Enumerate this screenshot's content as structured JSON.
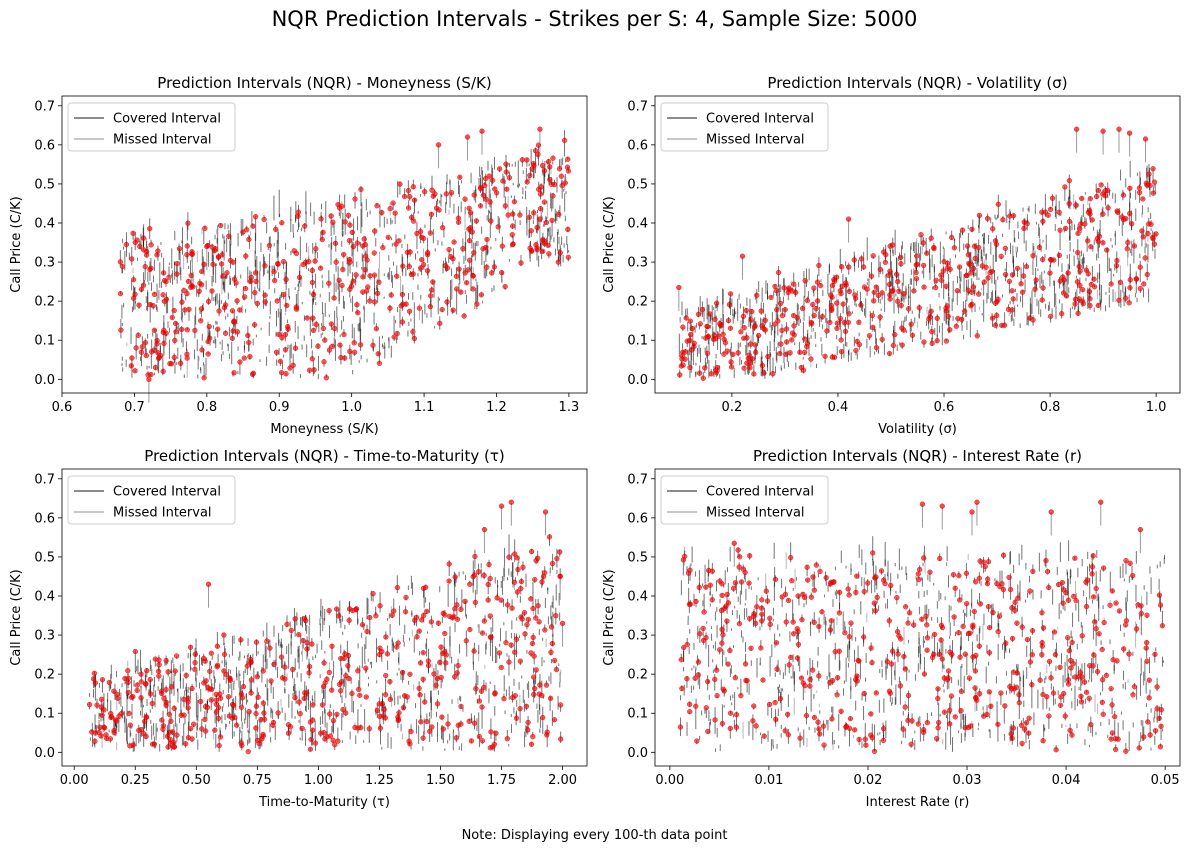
{
  "figure": {
    "suptitle": "NQR Prediction Intervals - Strikes per S: 4, Sample Size: 5000",
    "note": "Note: Displaying every 100-th data point",
    "legend": {
      "covered": "Covered Interval",
      "missed": "Missed Interval"
    },
    "colors": {
      "covered": "#000000",
      "missed": "#999999",
      "point": "#ff0000"
    }
  },
  "chart_data": [
    {
      "type": "scatter",
      "title": "Prediction Intervals (NQR) - Moneyness (S/K)",
      "xlabel": "Moneyness (S/K)",
      "ylabel": "Call Price (C/K)",
      "xlim": [
        0.6,
        1.325
      ],
      "ylim": [
        -0.035,
        0.725
      ],
      "xticks": [
        0.6,
        0.7,
        0.8,
        0.9,
        1.0,
        1.1,
        1.2,
        1.3
      ],
      "xtick_labels": [
        "0.6",
        "0.7",
        "0.8",
        "0.9",
        "1.0",
        "1.1",
        "1.2",
        "1.3"
      ],
      "yticks": [
        0.0,
        0.1,
        0.2,
        0.3,
        0.4,
        0.5,
        0.6,
        0.7
      ],
      "ytick_labels": [
        "0.0",
        "0.1",
        "0.2",
        "0.3",
        "0.4",
        "0.5",
        "0.6",
        "0.7"
      ],
      "legend_position": "upper left",
      "x_range": [
        0.63,
        1.3
      ],
      "trend": "increasing with moneyness, price floor near max(0, S/K - 1), ceiling near 0.3*S/K + 0.25",
      "highlight_points": [
        [
          1.16,
          0.62
        ],
        [
          1.18,
          0.635
        ],
        [
          1.26,
          0.64
        ],
        [
          1.12,
          0.6
        ],
        [
          1.19,
          0.52
        ],
        [
          1.26,
          0.41
        ],
        [
          0.78,
          0.32
        ],
        [
          0.8,
          0.34
        ],
        [
          0.72,
          0.0
        ],
        [
          0.74,
          0.12
        ]
      ]
    },
    {
      "type": "scatter",
      "title": "Prediction Intervals (NQR) - Volatility (σ)",
      "xlabel": "Volatility (σ)",
      "ylabel": "Call Price (C/K)",
      "xlim": [
        0.055,
        1.045
      ],
      "ylim": [
        -0.035,
        0.725
      ],
      "xticks": [
        0.2,
        0.4,
        0.6,
        0.8,
        1.0
      ],
      "xtick_labels": [
        "0.2",
        "0.4",
        "0.6",
        "0.8",
        "1.0"
      ],
      "yticks": [
        0.0,
        0.1,
        0.2,
        0.3,
        0.4,
        0.5,
        0.6,
        0.7
      ],
      "ytick_labels": [
        "0.0",
        "0.1",
        "0.2",
        "0.3",
        "0.4",
        "0.5",
        "0.6",
        "0.7"
      ],
      "legend_position": "upper left",
      "x_range": [
        0.1,
        1.0
      ],
      "trend": "lower envelope rises with volatility, band roughly 0.0-0.55",
      "highlight_points": [
        [
          0.85,
          0.64
        ],
        [
          0.9,
          0.635
        ],
        [
          0.93,
          0.64
        ],
        [
          0.95,
          0.63
        ],
        [
          0.98,
          0.615
        ],
        [
          0.1,
          0.235
        ],
        [
          0.22,
          0.315
        ],
        [
          0.42,
          0.41
        ]
      ]
    },
    {
      "type": "scatter",
      "title": "Prediction Intervals (NQR) - Time-to-Maturity (τ)",
      "xlabel": "Time-to-Maturity (τ)",
      "ylabel": "Call Price (C/K)",
      "xlim": [
        -0.05,
        2.1
      ],
      "ylim": [
        -0.035,
        0.725
      ],
      "xticks": [
        0.0,
        0.25,
        0.5,
        0.75,
        1.0,
        1.25,
        1.5,
        1.75,
        2.0
      ],
      "xtick_labels": [
        "0.00",
        "0.25",
        "0.50",
        "0.75",
        "1.00",
        "1.25",
        "1.50",
        "1.75",
        "2.00"
      ],
      "yticks": [
        0.0,
        0.1,
        0.2,
        0.3,
        0.4,
        0.5,
        0.6,
        0.7
      ],
      "ytick_labels": [
        "0.0",
        "0.1",
        "0.2",
        "0.3",
        "0.4",
        "0.5",
        "0.6",
        "0.7"
      ],
      "legend_position": "upper left",
      "x_range": [
        0.05,
        2.0
      ],
      "trend": "spread widens with maturity, most points between 0.0 and 0.5",
      "highlight_points": [
        [
          1.75,
          0.63
        ],
        [
          1.79,
          0.64
        ],
        [
          1.93,
          0.615
        ],
        [
          1.68,
          0.57
        ],
        [
          0.55,
          0.43
        ],
        [
          1.99,
          0.45
        ],
        [
          2.0,
          0.33
        ]
      ]
    },
    {
      "type": "scatter",
      "title": "Prediction Intervals (NQR) - Interest Rate (r)",
      "xlabel": "Interest Rate (r)",
      "ylabel": "Call Price (C/K)",
      "xlim": [
        -0.0015,
        0.0515
      ],
      "ylim": [
        -0.035,
        0.725
      ],
      "xticks": [
        0.0,
        0.01,
        0.02,
        0.03,
        0.04,
        0.05
      ],
      "xtick_labels": [
        "0.00",
        "0.01",
        "0.02",
        "0.03",
        "0.04",
        "0.05"
      ],
      "yticks": [
        0.0,
        0.1,
        0.2,
        0.3,
        0.4,
        0.5,
        0.6,
        0.7
      ],
      "ytick_labels": [
        "0.0",
        "0.1",
        "0.2",
        "0.3",
        "0.4",
        "0.5",
        "0.6",
        "0.7"
      ],
      "legend_position": "upper left",
      "x_range": [
        0.001,
        0.05
      ],
      "trend": "no clear relationship, uniform band 0.0-0.55",
      "highlight_points": [
        [
          0.0255,
          0.635
        ],
        [
          0.0275,
          0.63
        ],
        [
          0.0305,
          0.615
        ],
        [
          0.031,
          0.64
        ],
        [
          0.0385,
          0.615
        ],
        [
          0.0435,
          0.64
        ],
        [
          0.0475,
          0.57
        ],
        [
          0.0065,
          0.535
        ]
      ]
    }
  ]
}
